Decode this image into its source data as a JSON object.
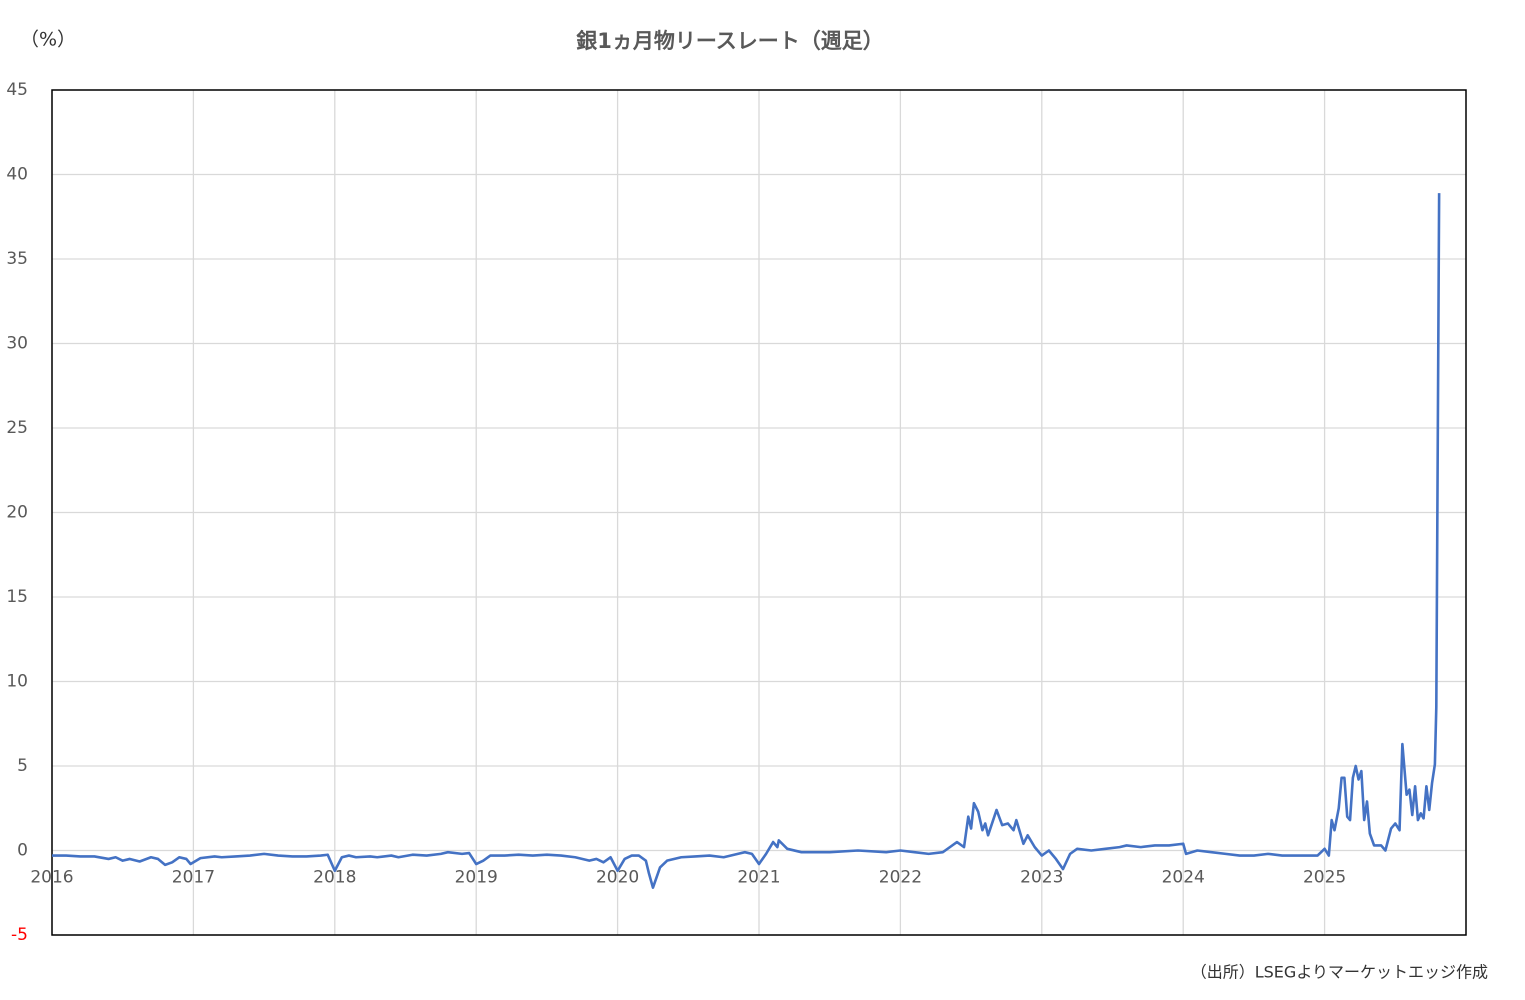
{
  "chart_data": {
    "type": "line",
    "title": "銀1ヵ月物リースレート（週足）",
    "y_unit_label": "（%）",
    "source": "（出所）LSEGよりマーケットエッジ作成",
    "xlim": [
      2016,
      2026
    ],
    "xticks": [
      2016,
      2017,
      2018,
      2019,
      2020,
      2021,
      2022,
      2023,
      2024,
      2025
    ],
    "ylim": [
      -5,
      45
    ],
    "yticks": [
      -5,
      0,
      5,
      10,
      15,
      20,
      25,
      30,
      35,
      40,
      45
    ],
    "negative_tick_color": "#ff0000",
    "grid": true,
    "x": [
      2016.0,
      2016.1,
      2016.2,
      2016.3,
      2016.4,
      2016.45,
      2016.5,
      2016.55,
      2016.62,
      2016.7,
      2016.75,
      2016.8,
      2016.85,
      2016.9,
      2016.95,
      2016.98,
      2017.05,
      2017.15,
      2017.2,
      2017.3,
      2017.4,
      2017.5,
      2017.6,
      2017.7,
      2017.8,
      2017.9,
      2017.95,
      2018.0,
      2018.05,
      2018.1,
      2018.15,
      2018.25,
      2018.3,
      2018.4,
      2018.45,
      2018.55,
      2018.65,
      2018.75,
      2018.8,
      2018.9,
      2018.95,
      2019.0,
      2019.05,
      2019.1,
      2019.2,
      2019.3,
      2019.4,
      2019.5,
      2019.6,
      2019.7,
      2019.8,
      2019.85,
      2019.9,
      2019.95,
      2020.0,
      2020.05,
      2020.1,
      2020.15,
      2020.2,
      2020.22,
      2020.25,
      2020.3,
      2020.35,
      2020.45,
      2020.55,
      2020.65,
      2020.75,
      2020.85,
      2020.9,
      2020.95,
      2021.0,
      2021.05,
      2021.1,
      2021.13,
      2021.14,
      2021.2,
      2021.3,
      2021.5,
      2021.7,
      2021.9,
      2022.0,
      2022.1,
      2022.2,
      2022.3,
      2022.35,
      2022.4,
      2022.45,
      2022.48,
      2022.5,
      2022.52,
      2022.55,
      2022.58,
      2022.6,
      2022.62,
      2022.68,
      2022.72,
      2022.76,
      2022.8,
      2022.82,
      2022.87,
      2022.9,
      2022.95,
      2023.0,
      2023.05,
      2023.1,
      2023.15,
      2023.2,
      2023.25,
      2023.35,
      2023.45,
      2023.55,
      2023.6,
      2023.7,
      2023.8,
      2023.9,
      2024.0,
      2024.02,
      2024.1,
      2024.2,
      2024.3,
      2024.4,
      2024.5,
      2024.6,
      2024.7,
      2024.8,
      2024.95,
      2025.0,
      2025.03,
      2025.05,
      2025.07,
      2025.1,
      2025.12,
      2025.14,
      2025.16,
      2025.18,
      2025.2,
      2025.22,
      2025.24,
      2025.26,
      2025.28,
      2025.3,
      2025.32,
      2025.35,
      2025.4,
      2025.43,
      2025.47,
      2025.5,
      2025.53,
      2025.55,
      2025.58,
      2025.6,
      2025.62,
      2025.64,
      2025.66,
      2025.68,
      2025.7,
      2025.72,
      2025.74,
      2025.76,
      2025.78,
      2025.79,
      2025.81
    ],
    "series": [
      {
        "name": "銀1ヵ月物リースレート",
        "color": "#4472c4",
        "values": [
          -0.3,
          -0.3,
          -0.35,
          -0.35,
          -0.5,
          -0.4,
          -0.6,
          -0.5,
          -0.65,
          -0.4,
          -0.5,
          -0.85,
          -0.7,
          -0.4,
          -0.5,
          -0.8,
          -0.45,
          -0.35,
          -0.4,
          -0.35,
          -0.3,
          -0.2,
          -0.3,
          -0.35,
          -0.35,
          -0.3,
          -0.25,
          -1.2,
          -0.4,
          -0.3,
          -0.4,
          -0.35,
          -0.4,
          -0.3,
          -0.4,
          -0.25,
          -0.3,
          -0.2,
          -0.1,
          -0.2,
          -0.15,
          -0.8,
          -0.6,
          -0.3,
          -0.3,
          -0.25,
          -0.3,
          -0.25,
          -0.3,
          -0.4,
          -0.6,
          -0.5,
          -0.7,
          -0.4,
          -1.2,
          -0.5,
          -0.3,
          -0.3,
          -0.6,
          -1.3,
          -2.2,
          -1.0,
          -0.6,
          -0.4,
          -0.35,
          -0.3,
          -0.4,
          -0.2,
          -0.1,
          -0.2,
          -0.8,
          -0.2,
          0.5,
          0.2,
          0.6,
          0.1,
          -0.1,
          -0.1,
          0.0,
          -0.1,
          0.0,
          -0.1,
          -0.2,
          -0.1,
          0.2,
          0.5,
          0.2,
          2.0,
          1.3,
          2.8,
          2.3,
          1.2,
          1.6,
          0.9,
          2.4,
          1.5,
          1.6,
          1.2,
          1.8,
          0.4,
          0.9,
          0.2,
          -0.3,
          0.0,
          -0.5,
          -1.1,
          -0.2,
          0.1,
          0.0,
          0.1,
          0.2,
          0.3,
          0.2,
          0.3,
          0.3,
          0.4,
          -0.2,
          0.0,
          -0.1,
          -0.2,
          -0.3,
          -0.3,
          -0.2,
          -0.3,
          -0.3,
          -0.3,
          0.1,
          -0.3,
          1.8,
          1.2,
          2.5,
          4.3,
          4.3,
          2.0,
          1.8,
          4.3,
          5.0,
          4.2,
          4.7,
          1.8,
          2.9,
          1.0,
          0.3,
          0.3,
          0.0,
          1.3,
          1.6,
          1.2,
          6.3,
          3.3,
          3.6,
          2.1,
          3.8,
          1.8,
          2.2,
          1.9,
          3.8,
          2.4,
          4.0,
          5.1,
          8.5,
          38.9
        ]
      }
    ]
  }
}
